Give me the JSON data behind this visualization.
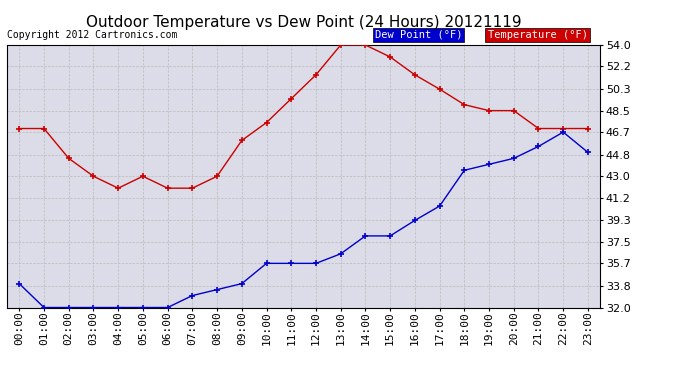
{
  "title": "Outdoor Temperature vs Dew Point (24 Hours) 20121119",
  "copyright": "Copyright 2012 Cartronics.com",
  "legend_dew": "Dew Point (°F)",
  "legend_temp": "Temperature (°F)",
  "x_labels": [
    "00:00",
    "01:00",
    "02:00",
    "03:00",
    "04:00",
    "05:00",
    "06:00",
    "07:00",
    "08:00",
    "09:00",
    "10:00",
    "11:00",
    "12:00",
    "13:00",
    "14:00",
    "15:00",
    "16:00",
    "17:00",
    "18:00",
    "19:00",
    "20:00",
    "21:00",
    "22:00",
    "23:00"
  ],
  "temperature": [
    47.0,
    47.0,
    44.5,
    43.0,
    42.0,
    43.0,
    42.0,
    42.0,
    43.0,
    46.0,
    47.5,
    49.5,
    51.5,
    54.0,
    54.0,
    53.0,
    51.5,
    50.3,
    49.0,
    48.5,
    48.5,
    47.0,
    47.0,
    47.0
  ],
  "dew_point": [
    34.0,
    32.0,
    32.0,
    32.0,
    32.0,
    32.0,
    32.0,
    33.0,
    33.5,
    34.0,
    35.7,
    35.7,
    35.7,
    36.5,
    38.0,
    38.0,
    39.3,
    40.5,
    43.5,
    44.0,
    44.5,
    45.5,
    46.7,
    45.0
  ],
  "ylim_min": 32.0,
  "ylim_max": 54.0,
  "y_ticks": [
    32.0,
    33.8,
    35.7,
    37.5,
    39.3,
    41.2,
    43.0,
    44.8,
    46.7,
    48.5,
    50.3,
    52.2,
    54.0
  ],
  "temp_color": "#cc0000",
  "dew_color": "#0000cc",
  "bg_color": "#ffffff",
  "plot_bg_color": "#dcdce8",
  "grid_color": "#bbbbbb",
  "title_fontsize": 11,
  "axis_fontsize": 8,
  "copyright_fontsize": 7
}
